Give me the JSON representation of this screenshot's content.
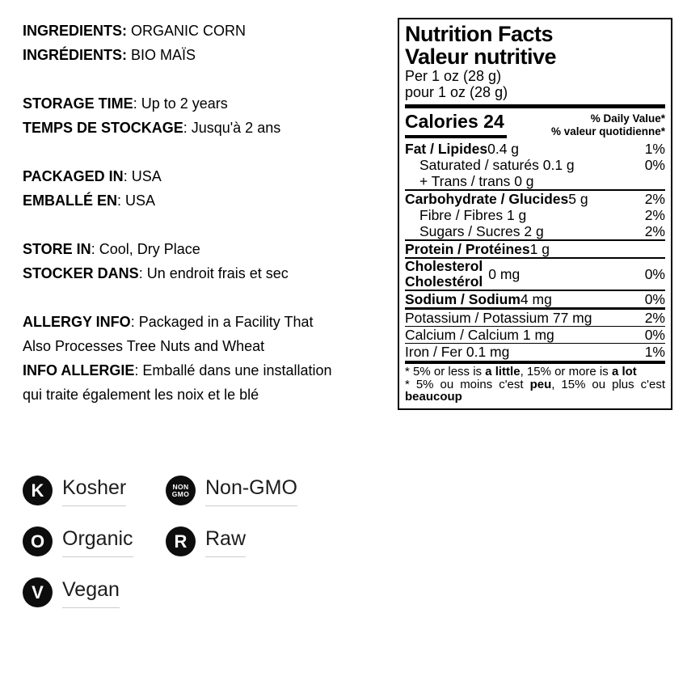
{
  "colors": {
    "text": "#000000",
    "badge_circle": "#0d0d0d",
    "badge_underline": "#cccccc"
  },
  "info": {
    "groups": [
      {
        "lines": [
          {
            "b": "INGREDIENTS:",
            "r": " ORGANIC CORN"
          },
          {
            "b": "INGRÉDIENTS:",
            "r": " BIO MAÏS"
          }
        ]
      },
      {
        "lines": [
          {
            "b": "STORAGE TIME",
            "r": ": Up to 2 years"
          },
          {
            "b": "TEMPS DE STOCKAGE",
            "r": ": Jusqu'à 2 ans"
          }
        ]
      },
      {
        "lines": [
          {
            "b": "PACKAGED IN",
            "r": ": USA"
          },
          {
            "b": "EMBALLÉ EN",
            "r": ": USA"
          }
        ]
      },
      {
        "lines": [
          {
            "b": "STORE IN",
            "r": ": Cool, Dry Place"
          },
          {
            "b": "STOCKER DANS",
            "r": ": Un endroit frais et sec"
          }
        ]
      },
      {
        "lines": [
          {
            "b": "ALLERGY INFO",
            "r": ": Packaged in a Facility That"
          },
          {
            "b": "",
            "r": "Also Processes Tree Nuts and Wheat"
          },
          {
            "b": "INFO ALLERGIE",
            "r": ": Emballé dans une installation"
          },
          {
            "b": "",
            "r": "qui traite également les noix et le blé"
          }
        ]
      }
    ]
  },
  "nutrition": {
    "title_en": "Nutrition Facts",
    "title_fr": "Valeur nutritive",
    "serving_en": "Per 1 oz (28 g)",
    "serving_fr": "pour 1 oz (28 g)",
    "calories_label": "Calories",
    "calories_value": "24",
    "dv_en": "% Daily Value*",
    "dv_fr": "% valeur quotidienne*",
    "rows": [
      {
        "bold": "Fat / Lipides",
        "rest": " 0.4 g",
        "pct": "1%"
      },
      {
        "bold": "",
        "rest": "Saturated / saturés 0.1 g",
        "pct": "0%"
      },
      {
        "bold": "",
        "rest": "+ Trans / trans 0 g",
        "pct": ""
      },
      {
        "bold": "Carbohydrate / Glucides",
        "rest": " 5 g",
        "pct": "2%"
      },
      {
        "bold": "",
        "rest": "Fibre / Fibres 1 g",
        "pct": "2%"
      },
      {
        "bold": "",
        "rest": "Sugars / Sucres 2 g",
        "pct": "2%"
      },
      {
        "bold": "Protein / Protéines",
        "rest": " 1 g",
        "pct": ""
      },
      {
        "bold_line1": "Cholesterol",
        "bold_line2": "Cholestérol",
        "rest": "0 mg",
        "pct": "0%"
      },
      {
        "bold": "Sodium / Sodium",
        "rest": " 4 mg",
        "pct": "0%"
      },
      {
        "bold": "",
        "rest": "Potassium / Potassium 77 mg",
        "pct": "2%"
      },
      {
        "bold": "",
        "rest": "Calcium / Calcium 1 mg",
        "pct": "0%"
      },
      {
        "bold": "",
        "rest": "Iron / Fer 0.1 mg",
        "pct": "1%"
      }
    ],
    "footnote_en": [
      "* 5% or less is ",
      "a little",
      ", 15% or more is ",
      "a lot"
    ],
    "footnote_fr": [
      "* 5% ou moins c'est ",
      "peu",
      ", 15% ou plus c'est ",
      "beaucoup"
    ]
  },
  "badges": [
    {
      "letter": "K",
      "label": "Kosher"
    },
    {
      "letter_top": "NON",
      "letter_bottom": "GMO",
      "label": "Non-GMO"
    },
    {
      "letter": "O",
      "label": "Organic"
    },
    {
      "letter": "R",
      "label": "Raw"
    },
    {
      "letter": "V",
      "label": "Vegan"
    }
  ]
}
